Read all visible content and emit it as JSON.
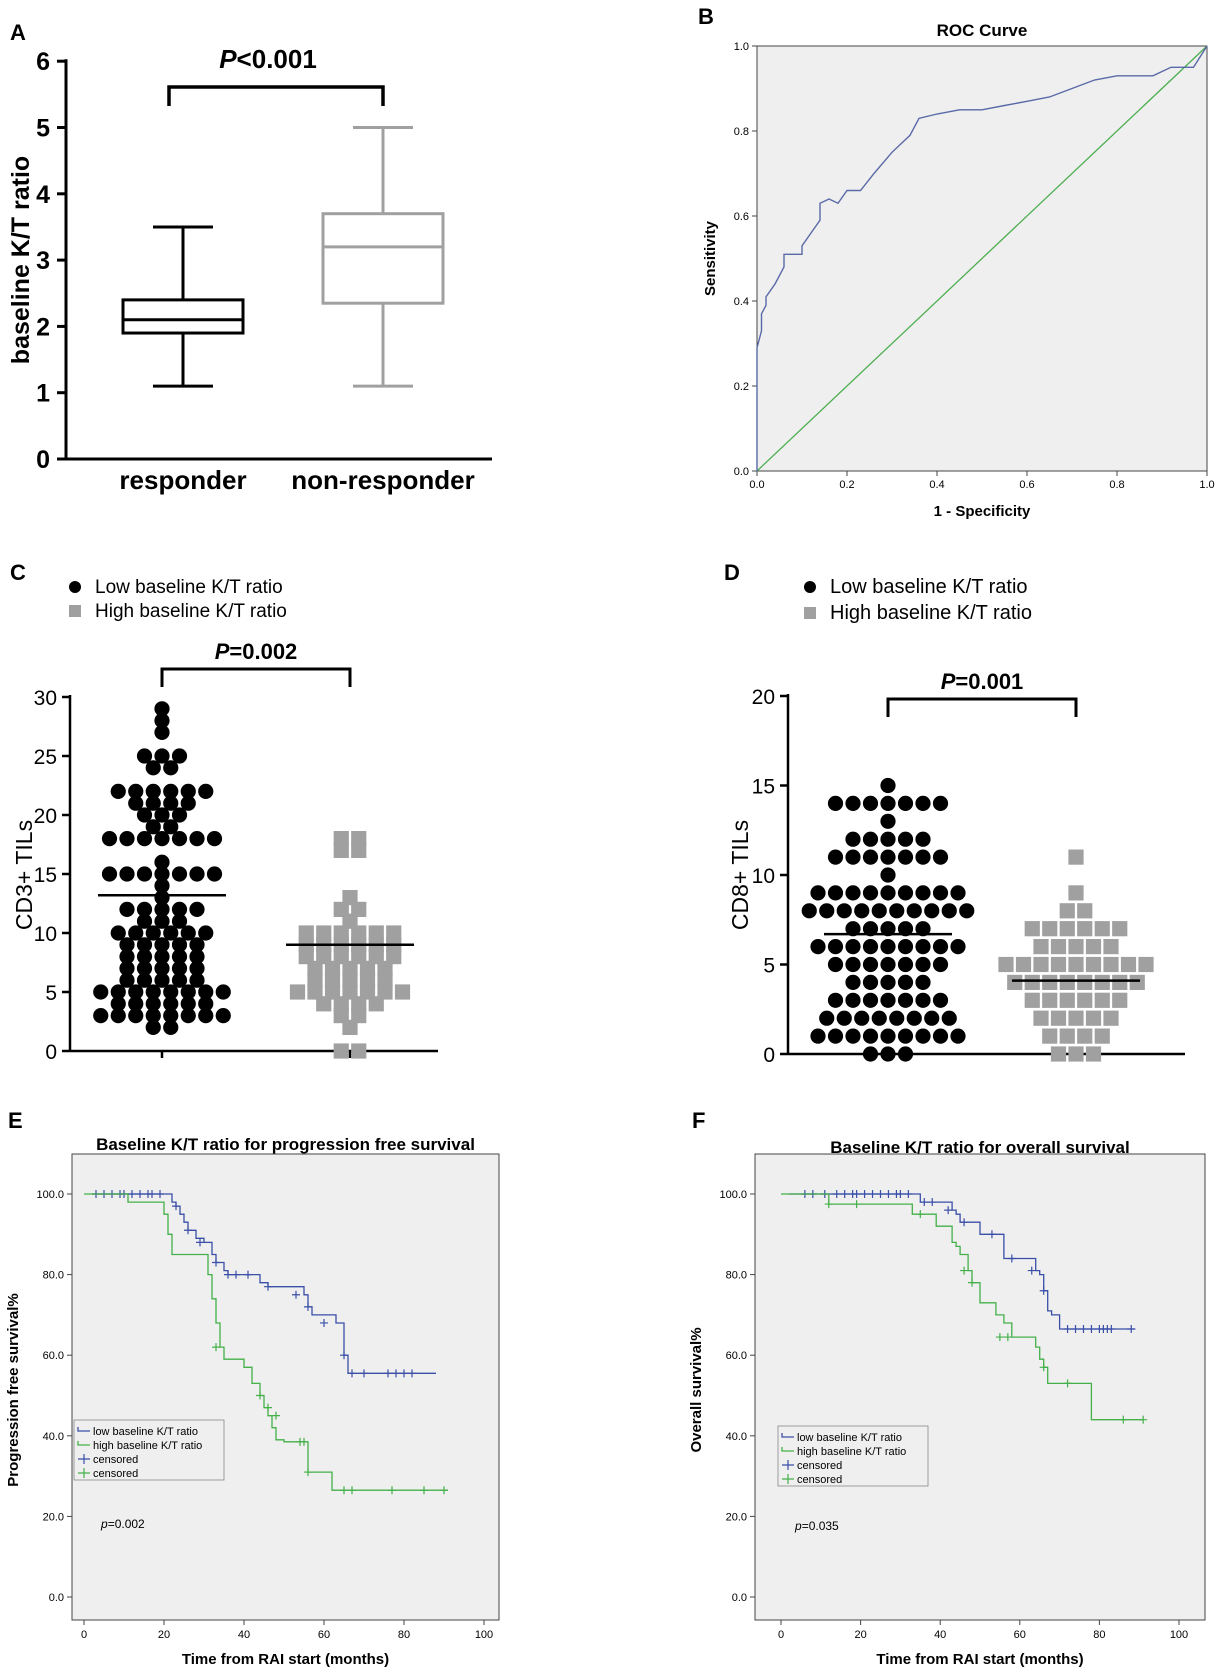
{
  "colors": {
    "black": "#000000",
    "gray": "#a0a0a0",
    "panel_bg": "#efefef",
    "roc_blue": "#5a6aa8",
    "ref_green": "#4caf50",
    "km_blue": "#3a4fa8",
    "km_green": "#43b049"
  },
  "chart_data": [
    {
      "panel": "A",
      "type": "box",
      "title": "",
      "ylabel": "baseline K/T ratio",
      "ylim": [
        0,
        6
      ],
      "yticks": [
        "0",
        "1",
        "2",
        "3",
        "4",
        "5",
        "6"
      ],
      "categories": [
        "responder",
        "non-responder"
      ],
      "boxes": [
        {
          "name": "responder",
          "min": 1.1,
          "q1": 1.9,
          "median": 2.1,
          "q3": 2.4,
          "max": 3.5
        },
        {
          "name": "non-responder",
          "min": 1.1,
          "q1": 2.35,
          "median": 3.2,
          "q3": 3.7,
          "max": 5.0
        }
      ],
      "annotation": {
        "p_italic": "P",
        "p_rest": "<0.001"
      }
    },
    {
      "panel": "B",
      "type": "line",
      "title": "ROC Curve",
      "xlabel": "1 - Specificity",
      "ylabel": "Sensitivity",
      "xlim": [
        0,
        1
      ],
      "ylim": [
        0,
        1
      ],
      "xticks": [
        "0.0",
        "0.2",
        "0.4",
        "0.6",
        "0.8",
        "1.0"
      ],
      "yticks": [
        "0.0",
        "0.2",
        "0.4",
        "0.6",
        "0.8",
        "1.0"
      ],
      "series": [
        {
          "name": "ROC",
          "x": [
            0,
            0,
            0.01,
            0.01,
            0.02,
            0.02,
            0.04,
            0.06,
            0.06,
            0.08,
            0.1,
            0.1,
            0.12,
            0.14,
            0.14,
            0.16,
            0.18,
            0.2,
            0.2,
            0.23,
            0.26,
            0.3,
            0.34,
            0.36,
            0.4,
            0.45,
            0.5,
            0.55,
            0.6,
            0.65,
            0.7,
            0.75,
            0.8,
            0.85,
            0.88,
            0.92,
            0.95,
            0.97,
            1.0
          ],
          "y": [
            0,
            0.29,
            0.33,
            0.37,
            0.39,
            0.41,
            0.44,
            0.48,
            0.51,
            0.51,
            0.51,
            0.53,
            0.56,
            0.59,
            0.63,
            0.64,
            0.63,
            0.66,
            0.66,
            0.66,
            0.7,
            0.75,
            0.79,
            0.83,
            0.84,
            0.85,
            0.85,
            0.86,
            0.87,
            0.88,
            0.9,
            0.92,
            0.93,
            0.93,
            0.93,
            0.95,
            0.95,
            0.95,
            1.0
          ]
        },
        {
          "name": "Reference",
          "x": [
            0,
            1
          ],
          "y": [
            0,
            1
          ]
        }
      ]
    },
    {
      "panel": "C",
      "type": "scatter",
      "ylabel": "CD3+ TILs",
      "ylim": [
        0,
        30
      ],
      "yticks": [
        "0",
        "5",
        "10",
        "15",
        "20",
        "25",
        "30"
      ],
      "legend": [
        "Low baseline K/T ratio",
        "High baseline K/T ratio"
      ],
      "series": [
        {
          "name": "Low baseline K/T ratio",
          "marker": "circle",
          "mean": 13.2,
          "values": [
            29,
            28,
            27,
            25,
            25,
            25,
            24,
            24,
            22,
            22,
            22,
            22,
            22,
            22,
            21,
            21,
            21,
            21,
            20,
            20,
            20,
            19,
            19,
            18,
            18,
            18,
            18,
            18,
            18,
            18,
            16,
            15,
            15,
            15,
            15,
            15,
            15,
            15,
            14,
            13,
            12,
            12,
            12,
            12,
            12,
            11,
            11,
            11,
            10,
            10,
            10,
            10,
            10,
            10,
            9,
            9,
            9,
            9,
            9,
            8,
            8,
            8,
            8,
            8,
            7,
            7,
            7,
            7,
            7,
            6,
            6,
            6,
            6,
            6,
            5,
            5,
            5,
            5,
            5,
            5,
            5,
            5,
            4,
            4,
            4,
            4,
            4,
            4,
            3,
            3,
            3,
            3,
            3,
            3,
            3,
            3,
            2,
            2
          ]
        },
        {
          "name": "High baseline K/T ratio",
          "marker": "square",
          "mean": 9.0,
          "values": [
            18,
            18,
            17,
            17,
            13,
            12,
            12,
            11,
            10,
            10,
            10,
            10,
            10,
            10,
            9,
            9,
            9,
            9,
            9,
            9,
            8,
            8,
            8,
            8,
            8,
            8,
            7,
            7,
            7,
            7,
            7,
            6,
            6,
            6,
            6,
            6,
            5,
            5,
            5,
            5,
            5,
            5,
            5,
            4,
            4,
            4,
            4,
            3,
            3,
            2,
            0,
            0
          ]
        }
      ],
      "annotation": {
        "p_italic": "P",
        "p_rest": "=0.002"
      }
    },
    {
      "panel": "D",
      "type": "scatter",
      "ylabel": "CD8+ TILs",
      "ylim": [
        0,
        20
      ],
      "yticks": [
        "0",
        "5",
        "10",
        "15",
        "20"
      ],
      "legend": [
        "Low baseline K/T ratio",
        "High baseline K/T ratio"
      ],
      "series": [
        {
          "name": "Low baseline K/T ratio",
          "marker": "circle",
          "mean": 6.7,
          "values": [
            15,
            14,
            14,
            14,
            14,
            14,
            14,
            14,
            13,
            12,
            12,
            12,
            12,
            12,
            11,
            11,
            11,
            11,
            11,
            11,
            11,
            10,
            9,
            9,
            9,
            9,
            9,
            9,
            9,
            9,
            9,
            8,
            8,
            8,
            8,
            8,
            8,
            8,
            8,
            8,
            8,
            7,
            7,
            7,
            7,
            7,
            6,
            6,
            6,
            6,
            6,
            6,
            6,
            6,
            6,
            5,
            5,
            5,
            5,
            5,
            5,
            5,
            4,
            4,
            4,
            4,
            4,
            3,
            3,
            3,
            3,
            3,
            3,
            3,
            2,
            2,
            2,
            2,
            2,
            2,
            2,
            2,
            1,
            1,
            1,
            1,
            1,
            1,
            1,
            1,
            1,
            0,
            0,
            0
          ]
        },
        {
          "name": "High baseline K/T ratio",
          "marker": "square",
          "mean": 4.1,
          "values": [
            11,
            9,
            8,
            8,
            7,
            7,
            7,
            7,
            7,
            7,
            6,
            6,
            6,
            6,
            6,
            5,
            5,
            5,
            5,
            5,
            5,
            5,
            5,
            5,
            4,
            4,
            4,
            4,
            4,
            4,
            4,
            4,
            3,
            3,
            3,
            3,
            3,
            3,
            2,
            2,
            2,
            2,
            2,
            1,
            1,
            1,
            1,
            0,
            0,
            0
          ]
        }
      ],
      "annotation": {
        "p_italic": "P",
        "p_rest": "=0.001"
      }
    },
    {
      "panel": "E",
      "type": "line",
      "title": "Baseline K/T ratio for progression free survival",
      "xlabel": "Time from RAI start (months)",
      "ylabel": "Progression free survival%",
      "xlim": [
        0,
        100
      ],
      "ylim": [
        0,
        100
      ],
      "xticks": [
        "0",
        "20",
        "40",
        "60",
        "80",
        "100"
      ],
      "yticks": [
        "0.0",
        "20.0",
        "40.0",
        "60.0",
        "80.0",
        "100.0"
      ],
      "legend": [
        "low baseline K/T ratio",
        "high baseline K/T ratio",
        "censored",
        "censored"
      ],
      "pvalue": {
        "p": "p",
        "rest": "=0.002"
      },
      "series": [
        {
          "name": "low baseline K/T ratio",
          "x": [
            2,
            21,
            22,
            23,
            24,
            25,
            26,
            28,
            30,
            31,
            32,
            33,
            35,
            36,
            44,
            46,
            55,
            56,
            57,
            63,
            65,
            66,
            88
          ],
          "y": [
            100,
            100,
            98,
            97,
            95,
            93,
            91,
            89,
            88,
            88,
            85,
            83,
            81,
            80,
            78,
            77,
            75,
            72,
            70,
            68,
            60,
            55.5,
            55.5
          ],
          "censor_x": [
            3,
            5,
            7,
            9,
            10,
            12,
            14,
            16,
            17,
            19,
            23,
            26,
            29,
            33,
            36,
            38,
            41,
            46,
            53,
            56,
            60,
            65,
            67,
            70,
            76,
            78,
            80,
            82
          ],
          "censor_y": [
            100,
            100,
            100,
            100,
            100,
            100,
            100,
            100,
            100,
            100,
            97,
            91,
            88,
            83,
            80,
            80,
            80,
            77,
            75,
            72,
            68,
            60,
            55.5,
            55.5,
            55.5,
            55.5,
            55.5,
            55.5
          ]
        },
        {
          "name": "high baseline K/T ratio",
          "x": [
            0,
            5,
            11,
            16,
            20,
            21,
            22,
            30,
            31,
            32,
            33,
            34,
            35,
            40,
            42,
            44,
            45,
            46,
            47,
            48,
            50,
            54,
            56,
            58,
            61,
            62,
            91
          ],
          "y": [
            100,
            100,
            98,
            98,
            95,
            90,
            85,
            85,
            80,
            74,
            68,
            62,
            59,
            57,
            53,
            50,
            47,
            45,
            42,
            39,
            38.5,
            38.5,
            31,
            31,
            31,
            26.5,
            26.5
          ],
          "censor_x": [
            33,
            44,
            46,
            48,
            54,
            55,
            56,
            65,
            67,
            77,
            85,
            90
          ],
          "censor_y": [
            62,
            50,
            47,
            45,
            38.5,
            38.5,
            31,
            26.5,
            26.5,
            26.5,
            26.5,
            26.5
          ]
        }
      ]
    },
    {
      "panel": "F",
      "type": "line",
      "title": "Baseline K/T ratio for overall survival",
      "xlabel": "Time from RAI start (months)",
      "ylabel": "Overall survival%",
      "xlim": [
        0,
        100
      ],
      "ylim": [
        0,
        100
      ],
      "xticks": [
        "0",
        "20",
        "40",
        "60",
        "80",
        "100"
      ],
      "yticks": [
        "0.0",
        "20.0",
        "40.0",
        "60.0",
        "80.0",
        "100.0"
      ],
      "legend": [
        "low baseline K/T ratio",
        "high baseline K/T ratio",
        "censored",
        "censored"
      ],
      "pvalue": {
        "p": "p",
        "rest": "=0.035"
      },
      "series": [
        {
          "name": "low baseline K/T ratio",
          "x": [
            2,
            33,
            35,
            40,
            43,
            44,
            45,
            48,
            50,
            55,
            56,
            62,
            64,
            65,
            66,
            67,
            68,
            70,
            72,
            89
          ],
          "y": [
            100,
            100,
            98,
            98,
            96,
            95,
            93,
            93,
            90,
            90,
            84,
            84,
            81,
            80,
            76,
            71,
            70,
            66.5,
            66.5,
            66.5
          ],
          "censor_x": [
            6,
            8,
            11,
            14,
            16,
            18,
            19,
            21,
            23,
            25,
            27,
            29,
            30,
            32,
            36,
            38,
            42,
            46,
            53,
            58,
            63,
            66,
            72,
            74,
            76,
            78,
            80,
            81,
            82,
            83,
            88
          ],
          "censor_y": [
            100,
            100,
            100,
            100,
            100,
            100,
            100,
            100,
            100,
            100,
            100,
            100,
            100,
            100,
            98,
            98,
            96,
            93,
            90,
            84,
            81,
            76,
            66.5,
            66.5,
            66.5,
            66.5,
            66.5,
            66.5,
            66.5,
            66.5,
            66.5
          ]
        },
        {
          "name": "high baseline K/T ratio",
          "x": [
            0,
            5,
            12,
            23,
            33,
            35,
            39,
            40,
            43,
            44,
            45,
            47,
            48,
            50,
            54,
            56,
            58,
            63,
            64,
            65,
            66,
            67,
            68,
            71,
            75,
            77,
            78,
            91
          ],
          "y": [
            100,
            100,
            97.5,
            97.5,
            95,
            95,
            92,
            92,
            88,
            87,
            85,
            81,
            78,
            73,
            70,
            68,
            64.5,
            64.5,
            62,
            59,
            57,
            53,
            53,
            53,
            53,
            53,
            44,
            44
          ],
          "censor_x": [
            12,
            19,
            35,
            46,
            48,
            55,
            57,
            66,
            72,
            86,
            91
          ],
          "censor_y": [
            97.5,
            97.5,
            95,
            81,
            78,
            64.5,
            64.5,
            57,
            53,
            44,
            44
          ]
        }
      ]
    }
  ]
}
